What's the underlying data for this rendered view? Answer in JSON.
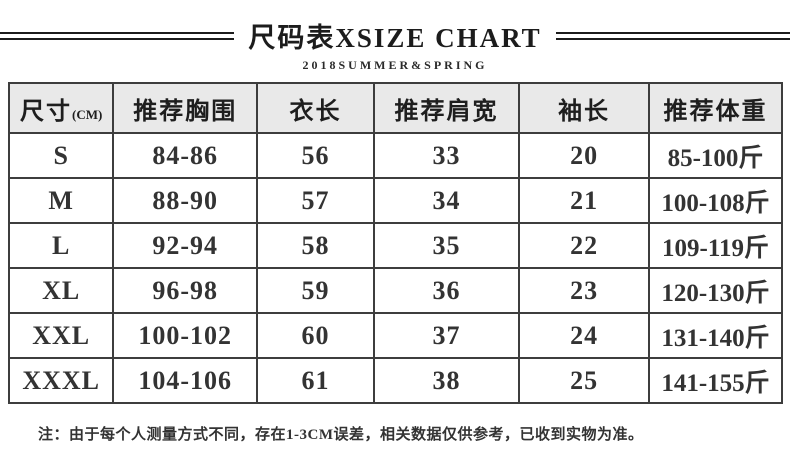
{
  "header": {
    "title": "尺码表XSIZE CHART",
    "subtitle": "2018SUMMER&SPRING"
  },
  "chart_data": {
    "type": "table",
    "title": "尺码表XSIZE CHART",
    "subtitle": "2018SUMMER&SPRING",
    "columns": [
      "尺寸(CM)",
      "推荐胸围",
      "衣长",
      "推荐肩宽",
      "袖长",
      "推荐体重"
    ],
    "size_column": {
      "label": "尺寸",
      "unit": "(CM)"
    },
    "rows": [
      [
        "S",
        "84-86",
        "56",
        "33",
        "20",
        "85-100斤"
      ],
      [
        "M",
        "88-90",
        "57",
        "34",
        "21",
        "100-108斤"
      ],
      [
        "L",
        "92-94",
        "58",
        "35",
        "22",
        "109-119斤"
      ],
      [
        "XL",
        "96-98",
        "59",
        "36",
        "23",
        "120-130斤"
      ],
      [
        "XXL",
        "100-102",
        "60",
        "37",
        "24",
        "131-140斤"
      ],
      [
        "XXXL",
        "104-106",
        "61",
        "38",
        "25",
        "141-155斤"
      ]
    ],
    "note": "注：由于每个人测量方式不同，存在1-3CM误差，相关数据仅供参考，已收到实物为准。"
  },
  "colors": {
    "header_bg": "#e9e9e9",
    "border": "#3d3d3d",
    "text": "#333333",
    "title": "#1c1c1c"
  }
}
